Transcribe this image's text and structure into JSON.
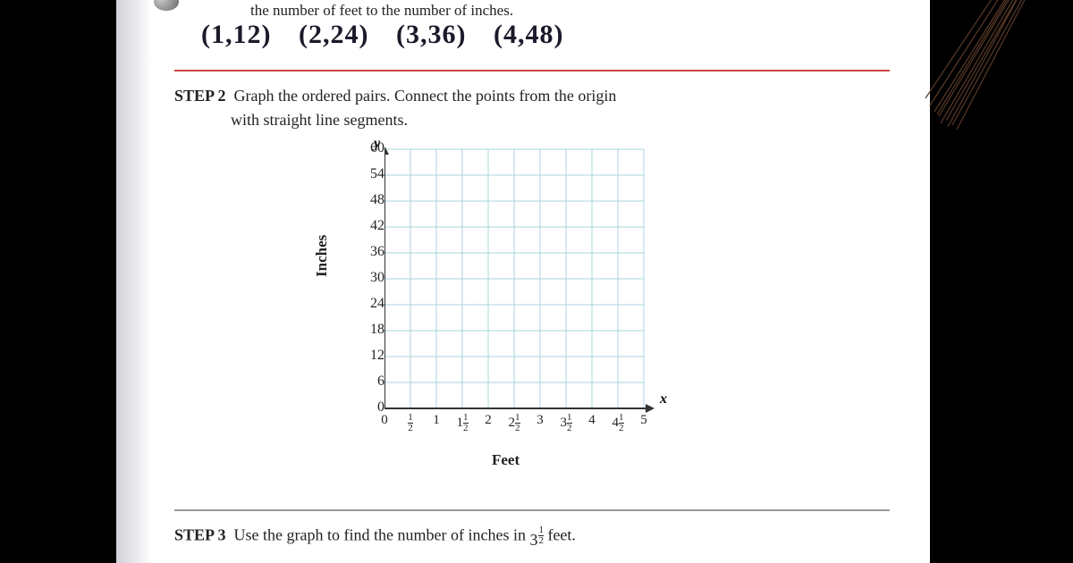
{
  "top_text": "the number of feet to the number of inches.",
  "handwritten_pairs": [
    "(1,12)",
    "(2,24)",
    "(3,36)",
    "(4,48)"
  ],
  "step2": {
    "label": "STEP 2",
    "text_line1": "Graph the ordered pairs. Connect the points from the origin",
    "text_line2": "with straight line segments."
  },
  "step3": {
    "label": "STEP 3",
    "text_before": "Use the graph to find the number of inches in ",
    "mixed_whole": "3",
    "mixed_num": "1",
    "mixed_den": "2",
    "text_after": " feet."
  },
  "chart": {
    "type": "grid",
    "y_label": "Inches",
    "x_label": "Feet",
    "y_marker": "y",
    "x_marker": "x",
    "y_ticks": [
      60,
      54,
      48,
      42,
      36,
      30,
      24,
      18,
      12,
      6,
      0
    ],
    "x_ticks_display": [
      "0",
      "1/2",
      "1",
      "1 1/2",
      "2",
      "2 1/2",
      "3",
      "3 1/2",
      "4",
      "4 1/2",
      "5"
    ],
    "grid_cols": 10,
    "grid_rows": 10,
    "cell_size": 29,
    "grid_color": "#a8d4dc",
    "axis_color": "#333333",
    "background_color": "#ffffff"
  },
  "colors": {
    "red_divider": "#c44444",
    "gray_divider": "#999999",
    "text": "#222222",
    "handwriting": "#1a1a2a"
  }
}
